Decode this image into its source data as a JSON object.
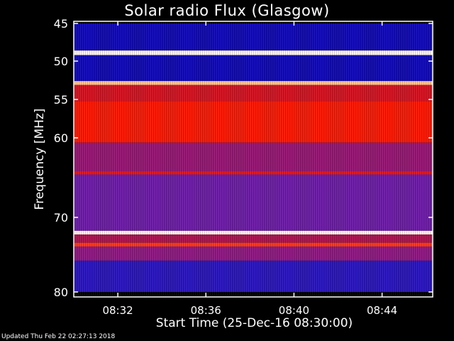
{
  "chart_data": {
    "type": "heatmap",
    "title": "Solar radio Flux (Glasgow)",
    "xlabel": "Start Time (25-Dec-16 08:30:00)",
    "ylabel": "Frequency [MHz]",
    "x_range_minutes_after_0830": [
      0,
      16.3
    ],
    "ylim_mhz": [
      80,
      45
    ],
    "y_ticks": [
      "45",
      "50",
      "55",
      "60",
      "70",
      "80"
    ],
    "x_ticks": [
      "08:32",
      "08:36",
      "08:40",
      "08:44"
    ],
    "colormap": [
      "#0000b0",
      "#3a1fc0",
      "#7a1ca0",
      "#c01030",
      "#ff1a00",
      "#ffb060",
      "#ffffff"
    ],
    "frequency_bands": [
      {
        "from_mhz": 45.0,
        "to_mhz": 48.6,
        "level": 0.05
      },
      {
        "from_mhz": 48.6,
        "to_mhz": 49.2,
        "level": 0.98
      },
      {
        "from_mhz": 49.2,
        "to_mhz": 52.6,
        "level": 0.05
      },
      {
        "from_mhz": 52.6,
        "to_mhz": 53.1,
        "level": 0.88
      },
      {
        "from_mhz": 53.1,
        "to_mhz": 55.2,
        "level": 0.55
      },
      {
        "from_mhz": 55.2,
        "to_mhz": 60.6,
        "level": 0.65
      },
      {
        "from_mhz": 60.6,
        "to_mhz": 64.2,
        "level": 0.4
      },
      {
        "from_mhz": 64.2,
        "to_mhz": 64.6,
        "level": 0.6
      },
      {
        "from_mhz": 64.6,
        "to_mhz": 71.8,
        "level": 0.3
      },
      {
        "from_mhz": 71.8,
        "to_mhz": 72.3,
        "level": 0.98
      },
      {
        "from_mhz": 72.3,
        "to_mhz": 73.4,
        "level": 0.45
      },
      {
        "from_mhz": 73.4,
        "to_mhz": 73.9,
        "level": 0.7
      },
      {
        "from_mhz": 73.9,
        "to_mhz": 75.8,
        "level": 0.38
      },
      {
        "from_mhz": 75.8,
        "to_mhz": 80.0,
        "level": 0.12
      }
    ],
    "grid": false,
    "legend": "none"
  },
  "footer": {
    "updated_text": "Updated Thu Feb 22 02:27:13 2018"
  }
}
